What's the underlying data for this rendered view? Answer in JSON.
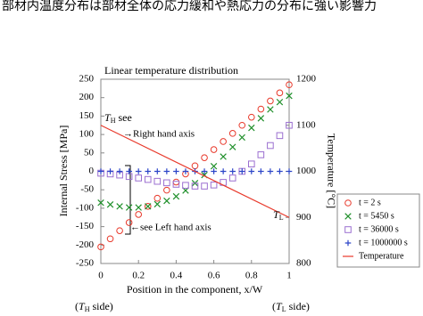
{
  "heading": "部材内温度分布は部材全体の応力緩和や熱応力の分布に強い影響力",
  "chart_data": {
    "type": "line",
    "title": "Linear temperature distribution",
    "x_label": "Position in the component, x/W",
    "y_label": "Internal Stress [MPa]",
    "y2_label": "Temperature [°C]",
    "side_labels": [
      {
        "open": "(",
        "t": "T",
        "sub": "H",
        "close": " side)"
      },
      {
        "open": "(",
        "t": "T",
        "sub": "L",
        "close": " side)"
      }
    ],
    "annotations": {
      "th": {
        "t": "T",
        "sub": "H",
        "text": " see"
      },
      "right": "→Right hand axis",
      "left": "←see Left hand axis",
      "tl": {
        "t": "T",
        "sub": "L"
      }
    },
    "x": [
      0,
      0.05,
      0.1,
      0.15,
      0.2,
      0.25,
      0.3,
      0.35,
      0.4,
      0.45,
      0.5,
      0.55,
      0.6,
      0.65,
      0.7,
      0.75,
      0.8,
      0.85,
      0.9,
      0.95,
      1
    ],
    "xlim": [
      0,
      1
    ],
    "xticks": [
      0,
      0.2,
      0.4,
      0.6,
      0.8,
      1
    ],
    "ylim": [
      -250,
      250
    ],
    "yticks": [
      -250,
      -200,
      -150,
      -100,
      -50,
      0,
      50,
      100,
      150,
      200,
      250
    ],
    "y2lim": [
      800,
      1200
    ],
    "y2ticks": [
      800,
      900,
      1000,
      1100,
      1200
    ],
    "legend": "right-bottom",
    "series": [
      {
        "name": "t = 2 s",
        "color": "#e8392b",
        "marker": "circle",
        "values": [
          -205,
          -183,
          -161,
          -139,
          -117,
          -95,
          -73,
          -51,
          -29,
          -7,
          15,
          37,
          59,
          81,
          103,
          125,
          147,
          169,
          191,
          213,
          235
        ]
      },
      {
        "name": "t = 5450 s",
        "color": "#1f8f2a",
        "marker": "x",
        "values": [
          -85,
          -90,
          -95,
          -98,
          -98,
          -95,
          -89,
          -80,
          -68,
          -52,
          -32,
          -10,
          14,
          40,
          66,
          92,
          118,
          144,
          168,
          188,
          205
        ]
      },
      {
        "name": "t = 36000 s",
        "color": "#9b6fd0",
        "marker": "square",
        "values": [
          -5,
          -7,
          -10,
          -14,
          -18,
          -22,
          -27,
          -31,
          -35,
          -38,
          -40,
          -40,
          -37,
          -30,
          -18,
          0,
          20,
          45,
          70,
          97,
          125
        ]
      },
      {
        "name": "t = 1000000 s",
        "color": "#2b44c8",
        "marker": "plus",
        "values": [
          0,
          0,
          0,
          0,
          0,
          0,
          0,
          0,
          0,
          0,
          0,
          0,
          0,
          0,
          0,
          0,
          0,
          0,
          0,
          0,
          0
        ]
      },
      {
        "name": "Temperature",
        "color": "#e8392b",
        "marker": "line",
        "axis": "y2",
        "x": [
          0,
          1
        ],
        "values": [
          1100,
          900
        ]
      }
    ]
  }
}
